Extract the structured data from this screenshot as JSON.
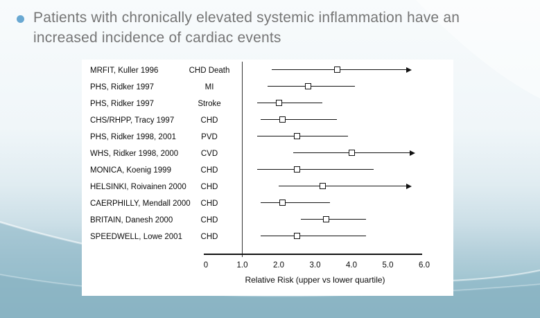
{
  "slide": {
    "title": "Patients with chronically elevated systemic inflammation have an increased incidence of cardiac events"
  },
  "colors": {
    "bullet": "#69a8d2",
    "title_text": "#757575",
    "background_teal": "#8fb9c8",
    "chart_ink": "#111111",
    "panel": "#ffffff"
  },
  "icons": {
    "bullet": "circle-bullet-icon",
    "arrow": "right-arrow-icon"
  },
  "chart_data": {
    "type": "scatter",
    "subtype": "forest-plot",
    "title": "",
    "xlabel": "Relative Risk (upper vs lower quartile)",
    "ylabel": "",
    "xlim": [
      0,
      6
    ],
    "reference_line_x": 1.0,
    "grid": false,
    "legend": "none",
    "x_ticks": [
      {
        "label": "0",
        "value": 0
      },
      {
        "label": "1.0",
        "value": 1
      },
      {
        "label": "2.0",
        "value": 2
      },
      {
        "label": "3.0",
        "value": 3
      },
      {
        "label": "4.0",
        "value": 4
      },
      {
        "label": "5.0",
        "value": 5
      },
      {
        "label": "6.0",
        "value": 6
      }
    ],
    "rows": [
      {
        "study": "MRFIT, Kuller 1996",
        "outcome": "CHD Death",
        "rr": 3.6,
        "ci_low": 1.8,
        "ci_high": 5.5,
        "arrow": true
      },
      {
        "study": "PHS, Ridker 1997",
        "outcome": "MI",
        "rr": 2.8,
        "ci_low": 1.7,
        "ci_high": 4.1,
        "arrow": false
      },
      {
        "study": "PHS, Ridker 1997",
        "outcome": "Stroke",
        "rr": 2.0,
        "ci_low": 1.4,
        "ci_high": 3.2,
        "arrow": false
      },
      {
        "study": "CHS/RHPP, Tracy 1997",
        "outcome": "CHD",
        "rr": 2.1,
        "ci_low": 1.5,
        "ci_high": 3.6,
        "arrow": false
      },
      {
        "study": "PHS, Ridker 1998, 2001",
        "outcome": "PVD",
        "rr": 2.5,
        "ci_low": 1.4,
        "ci_high": 3.9,
        "arrow": false
      },
      {
        "study": "WHS, Ridker 1998, 2000",
        "outcome": "CVD",
        "rr": 4.0,
        "ci_low": 2.4,
        "ci_high": 5.6,
        "arrow": true
      },
      {
        "study": "MONICA, Koenig 1999",
        "outcome": "CHD",
        "rr": 2.5,
        "ci_low": 1.4,
        "ci_high": 4.6,
        "arrow": false
      },
      {
        "study": "HELSINKI, Roivainen 2000",
        "outcome": "CHD",
        "rr": 3.2,
        "ci_low": 2.0,
        "ci_high": 5.5,
        "arrow": true
      },
      {
        "study": "CAERPHILLY, Mendall 2000",
        "outcome": "CHD",
        "rr": 2.1,
        "ci_low": 1.5,
        "ci_high": 3.4,
        "arrow": false
      },
      {
        "study": "BRITAIN, Danesh 2000",
        "outcome": "CHD",
        "rr": 3.3,
        "ci_low": 2.6,
        "ci_high": 4.4,
        "arrow": false
      },
      {
        "study": "SPEEDWELL, Lowe 2001",
        "outcome": "CHD",
        "rr": 2.5,
        "ci_low": 1.5,
        "ci_high": 4.4,
        "arrow": false
      }
    ]
  }
}
